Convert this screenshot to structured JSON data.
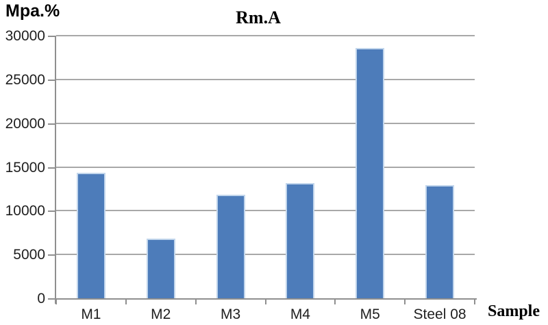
{
  "chart_data": {
    "type": "bar",
    "title": "Rm.A",
    "ylabel": "Mpa.%",
    "xlabel": "Sample",
    "categories": [
      "M1",
      "M2",
      "M3",
      "M4",
      "M5",
      "Steel 08"
    ],
    "values": [
      14400,
      6900,
      11900,
      13200,
      28700,
      13000
    ],
    "ylim": [
      0,
      30000
    ],
    "yticks": [
      0,
      5000,
      10000,
      15000,
      20000,
      25000,
      30000
    ],
    "grid": true,
    "legend": false,
    "layout_hints": {
      "bars_per_category": 1,
      "gridlines": "horizontal"
    },
    "colors": {
      "bar": "#4d7cba",
      "bar_border": "#c2d6ec",
      "gridline": "#a8a8a8",
      "axis": "#8f8f8f",
      "text": "#1f1f1f"
    }
  }
}
